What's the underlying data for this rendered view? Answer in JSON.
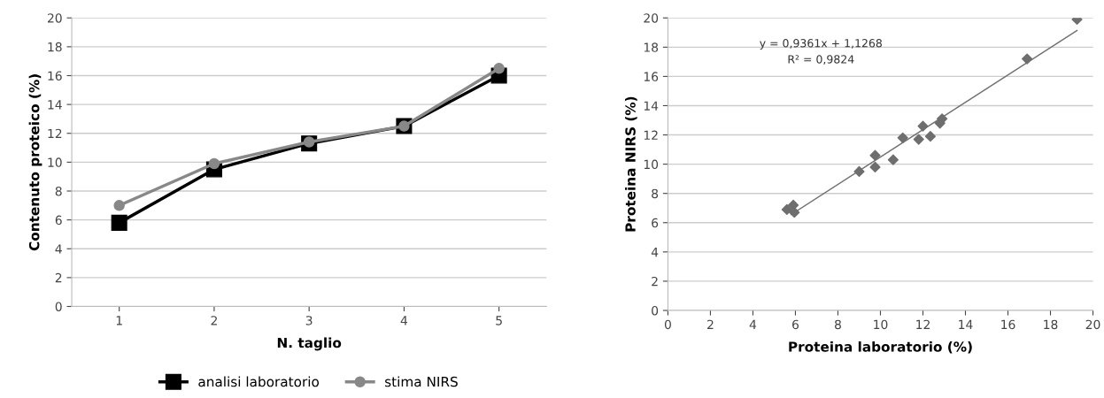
{
  "chart_data": [
    {
      "type": "line",
      "xlabel": "N. taglio",
      "ylabel": "Contenuto proteico (%)",
      "categories": [
        "1",
        "2",
        "3",
        "4",
        "5"
      ],
      "series": [
        {
          "name": "analisi laboratorio",
          "color": "#000000",
          "marker": "square",
          "values": [
            5.8,
            9.5,
            11.3,
            12.5,
            16.0
          ]
        },
        {
          "name": "stima NIRS",
          "color": "#888888",
          "marker": "circle",
          "values": [
            7.0,
            9.9,
            11.4,
            12.5,
            16.5
          ]
        }
      ],
      "ylim": [
        0,
        20
      ],
      "yticks": [
        0,
        2,
        4,
        6,
        8,
        10,
        12,
        14,
        16,
        18,
        20
      ],
      "grid": "y",
      "legend": "bottom",
      "line_style": "solid"
    },
    {
      "type": "scatter",
      "xlabel": "Proteina laboratorio (%)",
      "ylabel": "Proteina NIRS (%)",
      "series": [
        {
          "color": "#6e6e6e",
          "marker": "diamond",
          "x": [
            5.6,
            5.9,
            5.95,
            9.0,
            9.75,
            9.75,
            10.6,
            11.05,
            11.8,
            12.0,
            12.35,
            12.8,
            12.9,
            16.9,
            19.25
          ],
          "values": [
            6.9,
            7.2,
            6.7,
            9.5,
            10.6,
            9.8,
            10.3,
            11.8,
            11.7,
            12.6,
            11.9,
            12.8,
            13.1,
            17.2,
            19.9
          ]
        },
        {
          "type": "line",
          "color": "#707070",
          "marker": "none",
          "x": [
            5.8,
            19.25
          ],
          "values": [
            6.56,
            19.14
          ]
        }
      ],
      "annotations": [
        "y = 0,9361x + 1,1268",
        "R² = 0,9824"
      ],
      "xlim": [
        0,
        20
      ],
      "xticks": [
        0,
        2,
        4,
        6,
        8,
        10,
        12,
        14,
        16,
        18,
        20
      ],
      "ylim": [
        0,
        20
      ],
      "yticks": [
        0,
        2,
        4,
        6,
        8,
        10,
        12,
        14,
        16,
        18,
        20
      ],
      "grid": "y",
      "legend": false
    }
  ]
}
